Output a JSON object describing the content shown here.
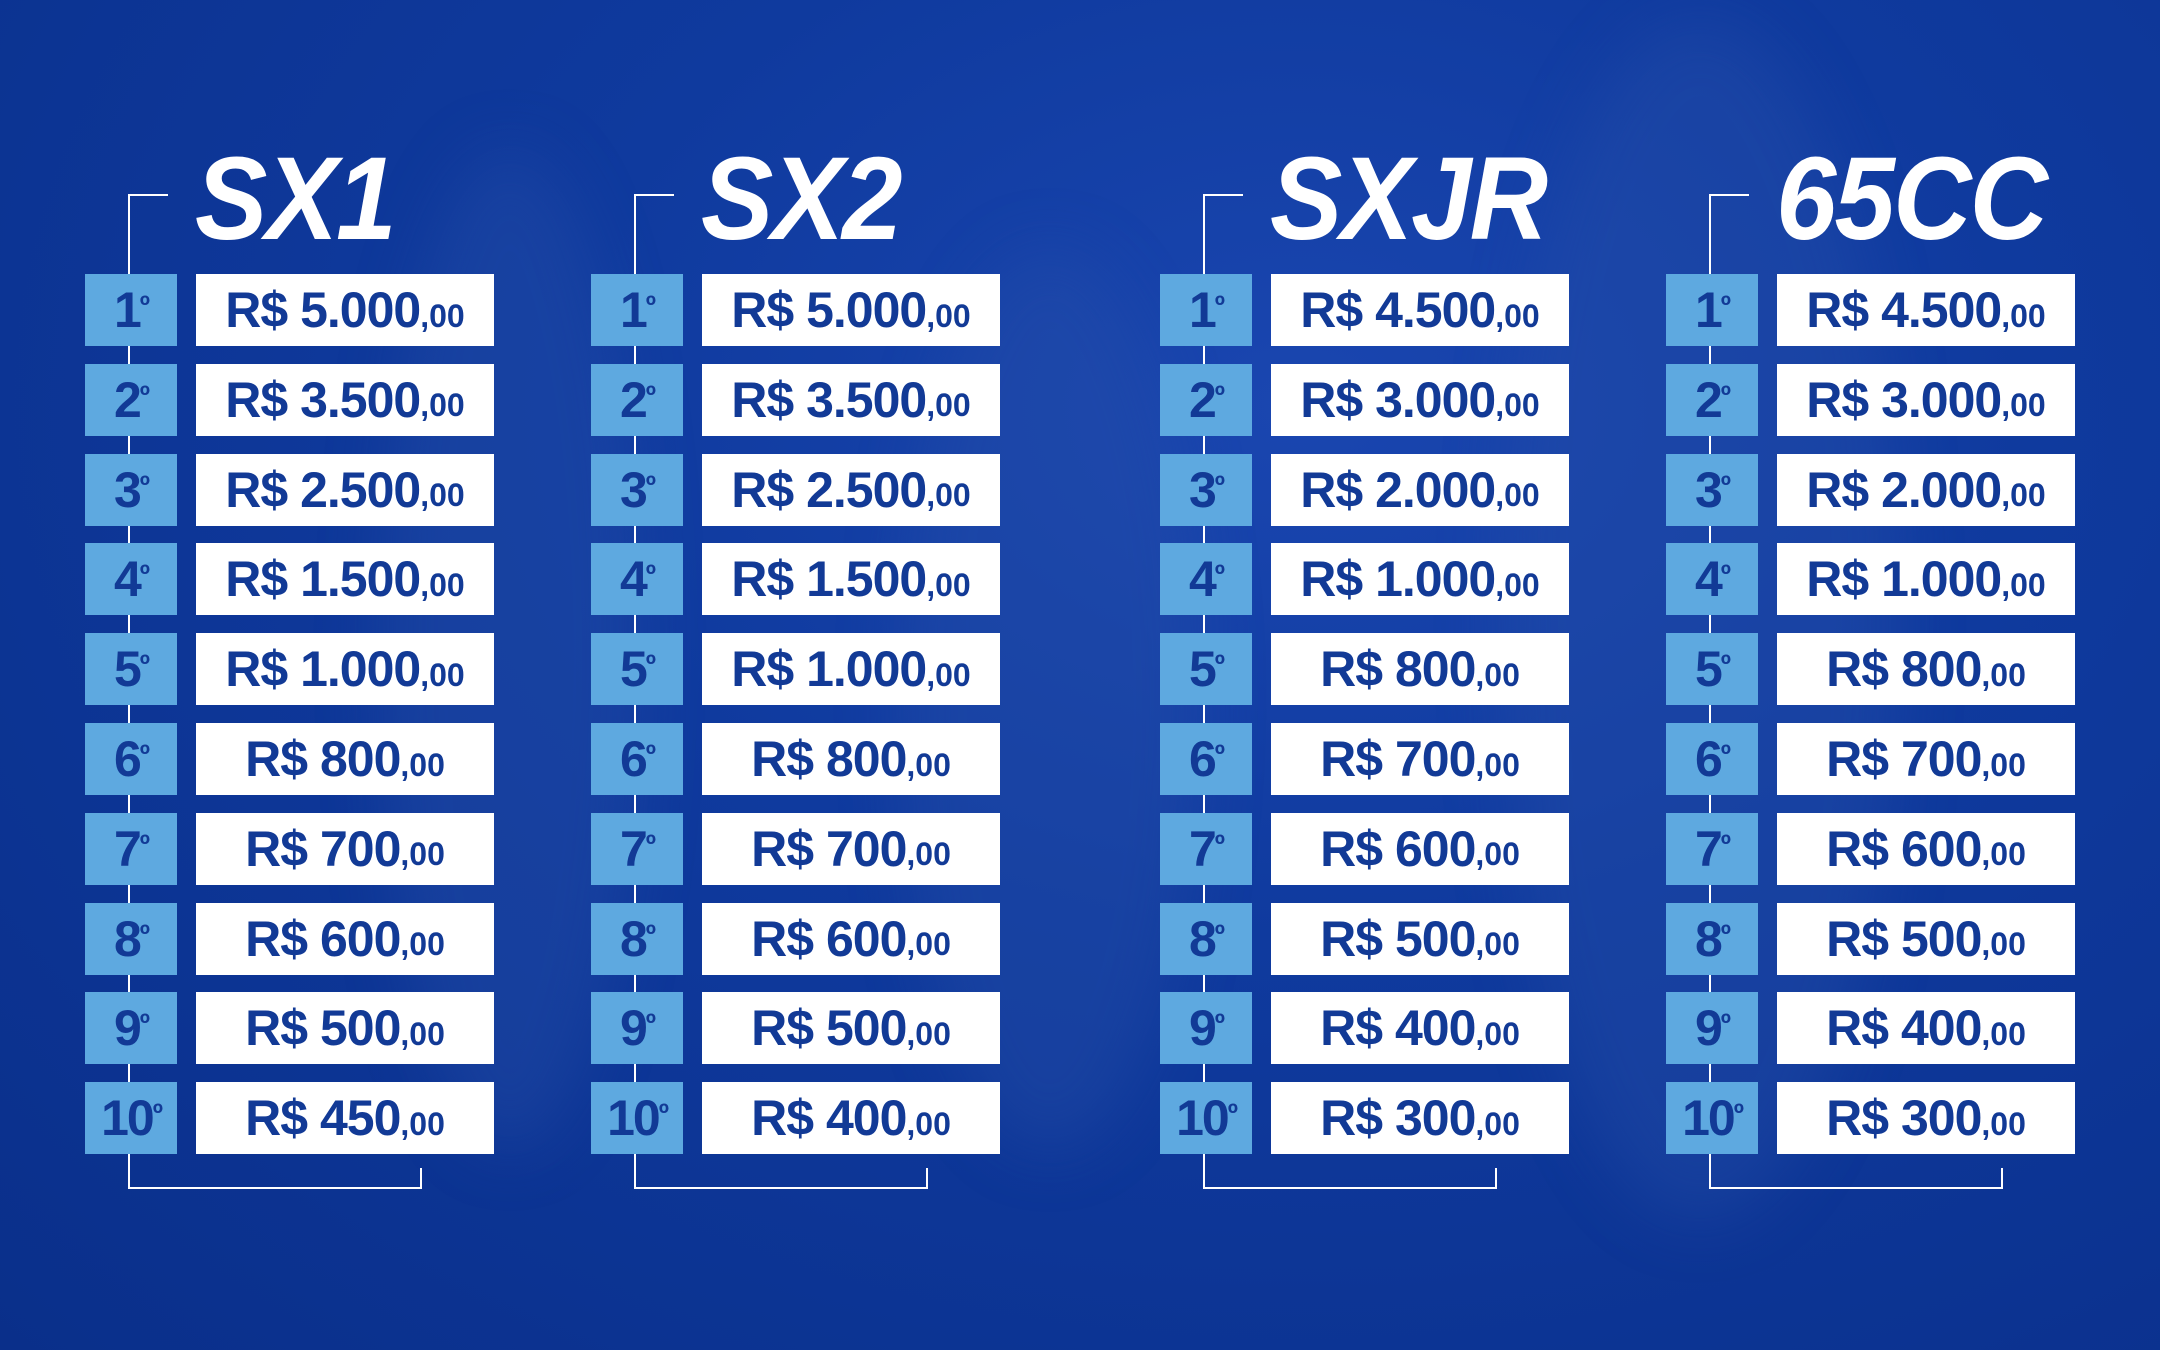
{
  "colors": {
    "background": "#0f3a9e",
    "rank_box": "#5ea9e0",
    "value_box": "#ffffff",
    "value_text": "#123a96",
    "title_text": "#ffffff"
  },
  "categories": [
    {
      "title": "SX1",
      "prizes": [
        {
          "rank": "1",
          "ord": "º",
          "value": "R$ 5.000",
          "cents": ",00"
        },
        {
          "rank": "2",
          "ord": "º",
          "value": "R$ 3.500",
          "cents": ",00"
        },
        {
          "rank": "3",
          "ord": "º",
          "value": "R$ 2.500",
          "cents": ",00"
        },
        {
          "rank": "4",
          "ord": "º",
          "value": "R$ 1.500",
          "cents": ",00"
        },
        {
          "rank": "5",
          "ord": "º",
          "value": "R$ 1.000",
          "cents": ",00"
        },
        {
          "rank": "6",
          "ord": "º",
          "value": "R$ 800",
          "cents": ",00"
        },
        {
          "rank": "7",
          "ord": "º",
          "value": "R$ 700",
          "cents": ",00"
        },
        {
          "rank": "8",
          "ord": "º",
          "value": "R$ 600",
          "cents": ",00"
        },
        {
          "rank": "9",
          "ord": "º",
          "value": "R$ 500",
          "cents": ",00"
        },
        {
          "rank": "10",
          "ord": "º",
          "value": "R$ 450",
          "cents": ",00"
        }
      ]
    },
    {
      "title": "SX2",
      "prizes": [
        {
          "rank": "1",
          "ord": "º",
          "value": "R$ 5.000",
          "cents": ",00"
        },
        {
          "rank": "2",
          "ord": "º",
          "value": "R$ 3.500",
          "cents": ",00"
        },
        {
          "rank": "3",
          "ord": "º",
          "value": "R$ 2.500",
          "cents": ",00"
        },
        {
          "rank": "4",
          "ord": "º",
          "value": "R$ 1.500",
          "cents": ",00"
        },
        {
          "rank": "5",
          "ord": "º",
          "value": "R$ 1.000",
          "cents": ",00"
        },
        {
          "rank": "6",
          "ord": "º",
          "value": "R$ 800",
          "cents": ",00"
        },
        {
          "rank": "7",
          "ord": "º",
          "value": "R$ 700",
          "cents": ",00"
        },
        {
          "rank": "8",
          "ord": "º",
          "value": "R$ 600",
          "cents": ",00"
        },
        {
          "rank": "9",
          "ord": "º",
          "value": "R$ 500",
          "cents": ",00"
        },
        {
          "rank": "10",
          "ord": "º",
          "value": "R$ 400",
          "cents": ",00"
        }
      ]
    },
    {
      "title": "SXJR",
      "prizes": [
        {
          "rank": "1",
          "ord": "º",
          "value": "R$ 4.500",
          "cents": ",00"
        },
        {
          "rank": "2",
          "ord": "º",
          "value": "R$ 3.000",
          "cents": ",00"
        },
        {
          "rank": "3",
          "ord": "º",
          "value": "R$ 2.000",
          "cents": ",00"
        },
        {
          "rank": "4",
          "ord": "º",
          "value": "R$ 1.000",
          "cents": ",00"
        },
        {
          "rank": "5",
          "ord": "º",
          "value": "R$ 800",
          "cents": ",00"
        },
        {
          "rank": "6",
          "ord": "º",
          "value": "R$ 700",
          "cents": ",00"
        },
        {
          "rank": "7",
          "ord": "º",
          "value": "R$ 600",
          "cents": ",00"
        },
        {
          "rank": "8",
          "ord": "º",
          "value": "R$ 500",
          "cents": ",00"
        },
        {
          "rank": "9",
          "ord": "º",
          "value": "R$ 400",
          "cents": ",00"
        },
        {
          "rank": "10",
          "ord": "º",
          "value": "R$ 300",
          "cents": ",00"
        }
      ]
    },
    {
      "title": "65CC",
      "prizes": [
        {
          "rank": "1",
          "ord": "º",
          "value": "R$ 4.500",
          "cents": ",00"
        },
        {
          "rank": "2",
          "ord": "º",
          "value": "R$ 3.000",
          "cents": ",00"
        },
        {
          "rank": "3",
          "ord": "º",
          "value": "R$ 2.000",
          "cents": ",00"
        },
        {
          "rank": "4",
          "ord": "º",
          "value": "R$ 1.000",
          "cents": ",00"
        },
        {
          "rank": "5",
          "ord": "º",
          "value": "R$ 800",
          "cents": ",00"
        },
        {
          "rank": "6",
          "ord": "º",
          "value": "R$ 700",
          "cents": ",00"
        },
        {
          "rank": "7",
          "ord": "º",
          "value": "R$ 600",
          "cents": ",00"
        },
        {
          "rank": "8",
          "ord": "º",
          "value": "R$ 500",
          "cents": ",00"
        },
        {
          "rank": "9",
          "ord": "º",
          "value": "R$ 400",
          "cents": ",00"
        },
        {
          "rank": "10",
          "ord": "º",
          "value": "R$ 300",
          "cents": ",00"
        }
      ]
    }
  ]
}
